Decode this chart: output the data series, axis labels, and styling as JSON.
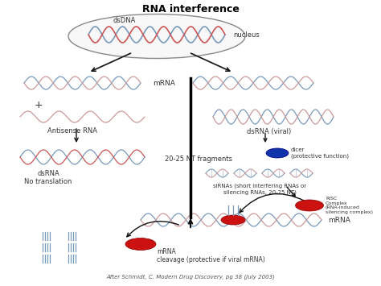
{
  "title": "RNA interference",
  "bg_color": "#ffffff",
  "citation": "After Schmidt, C. Modern Drug Discovery, pg 38 (July 2003)",
  "labels": {
    "dsdna": "dsDNA",
    "nucleus": "nucleus",
    "mrna": "mRNA",
    "antisense_rna": "Antisense RNA",
    "plus": "+",
    "dsrna_no_trans": "dsRNA\nNo translation",
    "fragments": "20-25 NT fragments",
    "dsrna_viral": "dsRNA (viral)",
    "dicer": "dicer\n(protective function)",
    "sirnas": "siRNAs (short interfering RNAs or\nsilencing RNAs, 20-25 NT)",
    "risc": "RISC\nComplex\n(RNA-induced\nsilencing complex)",
    "mrna_right": "mRNA",
    "mrna_cleavage": "mRNA\ncleavage (protective if viral mRNA)"
  },
  "colors": {
    "blue_strand": "#7799bb",
    "red_strand": "#cc5555",
    "pink_strand": "#cc9999",
    "ellipse_fill": "#f8f8f8",
    "ellipse_edge": "#888888",
    "arrow": "#111111",
    "blue_oval": "#1133aa",
    "red_oval": "#cc1111",
    "text": "#000000",
    "center_line": "#000000",
    "ladder": "#aaaacc"
  }
}
